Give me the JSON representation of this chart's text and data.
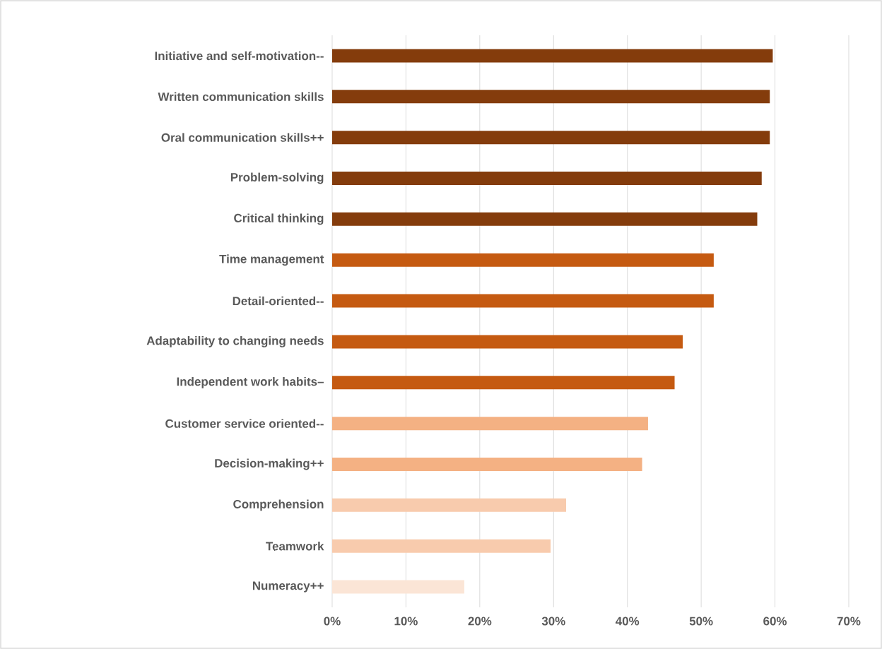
{
  "chart_data": {
    "type": "bar",
    "orientation": "horizontal",
    "categories": [
      "Initiative and self-motivation--",
      "Written communication skills",
      "Oral communication skills++",
      "Problem-solving",
      "Critical thinking",
      "Time management",
      "Detail-oriented--",
      "Adaptability to changing needs",
      "Independent work habits–",
      "Customer service oriented--",
      "Decision-making++",
      "Comprehension",
      "Teamwork",
      "Numeracy++"
    ],
    "values": [
      59.7,
      59.3,
      59.3,
      58.2,
      57.6,
      51.7,
      51.7,
      47.5,
      46.4,
      42.8,
      42.0,
      31.7,
      29.6,
      17.9
    ],
    "colors": [
      "#843c0c",
      "#843c0c",
      "#843c0c",
      "#843c0c",
      "#843c0c",
      "#c55a11",
      "#c55a11",
      "#c55a11",
      "#c55a11",
      "#f4b183",
      "#f4b183",
      "#f8cbad",
      "#f8cbad",
      "#fbe5d6"
    ],
    "xlim": [
      0,
      70
    ],
    "xticks": [
      {
        "value": 0,
        "label": "0%"
      },
      {
        "value": 10,
        "label": "10%"
      },
      {
        "value": 20,
        "label": "20%"
      },
      {
        "value": 30,
        "label": "30%"
      },
      {
        "value": 40,
        "label": "40%"
      },
      {
        "value": 50,
        "label": "50%"
      },
      {
        "value": 60,
        "label": "60%"
      },
      {
        "value": 70,
        "label": "70%"
      }
    ],
    "grid": "x"
  }
}
